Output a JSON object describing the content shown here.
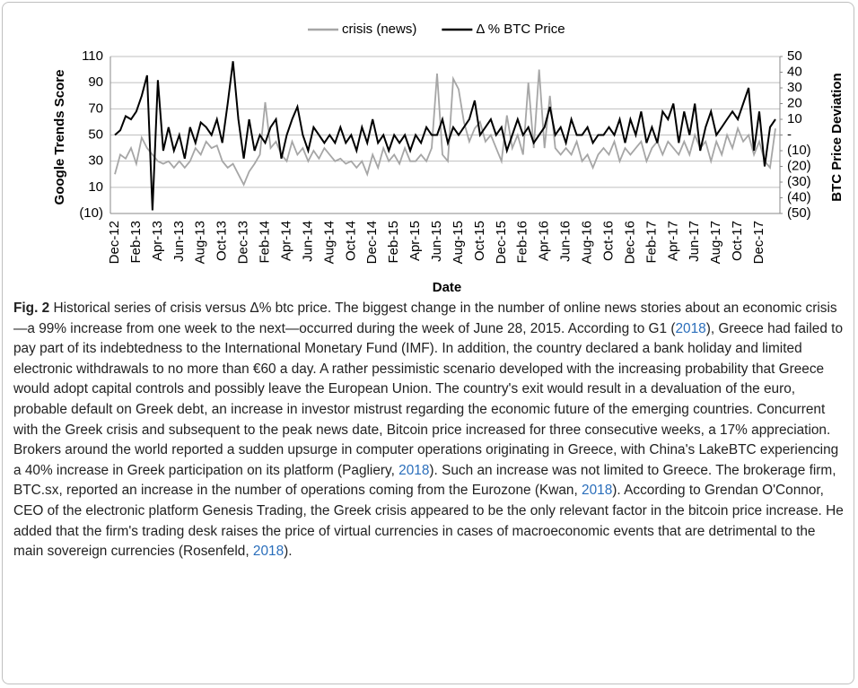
{
  "chart_data": {
    "type": "line",
    "x_label": "Date",
    "y_label": "Google Trends Score",
    "y2_label": "BTC Price Deviation",
    "categories": [
      "Dec-12",
      null,
      null,
      null,
      "Feb-13",
      null,
      null,
      null,
      "Apr-13",
      null,
      null,
      null,
      "Jun-13",
      null,
      null,
      null,
      "Aug-13",
      null,
      null,
      null,
      "Oct-13",
      null,
      null,
      null,
      "Dec-13",
      null,
      null,
      null,
      "Feb-14",
      null,
      null,
      null,
      "Apr-14",
      null,
      null,
      null,
      "Jun-14",
      null,
      null,
      null,
      "Aug-14",
      null,
      null,
      null,
      "Oct-14",
      null,
      null,
      null,
      "Dec-14",
      null,
      null,
      null,
      "Feb-15",
      null,
      null,
      null,
      "Apr-15",
      null,
      null,
      null,
      "Jun-15",
      null,
      null,
      null,
      "Aug-15",
      null,
      null,
      null,
      "Oct-15",
      null,
      null,
      null,
      "Dec-15",
      null,
      null,
      null,
      "Feb-16",
      null,
      null,
      null,
      "Apr-16",
      null,
      null,
      null,
      "Jun-16",
      null,
      null,
      null,
      "Aug-16",
      null,
      null,
      null,
      "Oct-16",
      null,
      null,
      null,
      "Dec-16",
      null,
      null,
      null,
      "Feb-17",
      null,
      null,
      null,
      "Apr-17",
      null,
      null,
      null,
      "Jun-17",
      null,
      null,
      null,
      "Aug-17",
      null,
      null,
      null,
      "Oct-17",
      null,
      null,
      null,
      "Dec-17",
      null,
      null,
      null
    ],
    "series": [
      {
        "name": "crisis (news)",
        "color": "#a6a6a6",
        "values": [
          20,
          35,
          32,
          40,
          28,
          48,
          40,
          35,
          30,
          28,
          30,
          25,
          30,
          25,
          30,
          40,
          35,
          45,
          40,
          42,
          30,
          25,
          28,
          20,
          12,
          22,
          28,
          35,
          75,
          40,
          45,
          35,
          30,
          45,
          35,
          40,
          30,
          38,
          32,
          40,
          35,
          30,
          32,
          28,
          30,
          25,
          30,
          20,
          35,
          25,
          40,
          30,
          35,
          28,
          40,
          30,
          30,
          35,
          30,
          40,
          97,
          35,
          30,
          93,
          85,
          60,
          45,
          55,
          60,
          45,
          50,
          40,
          30,
          65,
          40,
          50,
          35,
          90,
          40,
          100,
          40,
          80,
          40,
          35,
          40,
          35,
          45,
          30,
          35,
          25,
          35,
          40,
          35,
          45,
          30,
          40,
          35,
          40,
          45,
          30,
          40,
          45,
          35,
          45,
          40,
          35,
          45,
          35,
          50,
          40,
          45,
          30,
          45,
          35,
          50,
          40,
          55,
          45,
          50,
          35,
          45,
          30,
          25,
          55
        ]
      },
      {
        "name": "Δ % BTC Price",
        "color": "#000000",
        "axis": "y2",
        "values": [
          0,
          3,
          12,
          10,
          15,
          25,
          38,
          -48,
          35,
          -10,
          5,
          -10,
          0,
          -15,
          5,
          -5,
          8,
          5,
          0,
          10,
          -5,
          20,
          47,
          10,
          -15,
          10,
          -10,
          0,
          -5,
          5,
          10,
          -15,
          0,
          10,
          18,
          0,
          -10,
          5,
          0,
          -5,
          0,
          -5,
          5,
          -5,
          0,
          -10,
          5,
          -5,
          10,
          -5,
          0,
          -10,
          0,
          -5,
          0,
          -10,
          0,
          -5,
          5,
          0,
          0,
          10,
          -5,
          5,
          0,
          5,
          10,
          22,
          0,
          5,
          10,
          0,
          5,
          -10,
          0,
          10,
          0,
          5,
          -5,
          0,
          5,
          18,
          0,
          5,
          -5,
          10,
          0,
          0,
          5,
          -5,
          0,
          0,
          5,
          0,
          10,
          -5,
          10,
          0,
          15,
          -5,
          5,
          -5,
          15,
          10,
          20,
          -5,
          15,
          0,
          20,
          -10,
          5,
          15,
          0,
          5,
          10,
          15,
          10,
          20,
          30,
          -10,
          15,
          -20,
          5,
          10
        ]
      }
    ],
    "ylim": [
      -10,
      110
    ],
    "yticks": [
      {
        "value": -10,
        "label": "(10)"
      },
      10,
      30,
      50,
      70,
      90,
      110
    ],
    "y2lim": [
      -50,
      50
    ],
    "y2ticks": [
      {
        "value": -50,
        "label": "(50)"
      },
      {
        "value": -40,
        "label": "(40)"
      },
      {
        "value": -30,
        "label": "(30)"
      },
      {
        "value": -20,
        "label": "(20)"
      },
      {
        "value": -10,
        "label": "(10)"
      },
      {
        "value": 0,
        "label": "-"
      },
      10,
      20,
      30,
      40,
      50
    ],
    "grid": true,
    "legend": "top"
  },
  "caption": {
    "label": "Fig. 2",
    "parts": [
      {
        "text": " Historical series of crisis versus Δ% btc price. The biggest change in the number of online news stories about an economic crisis—a 99% increase from one week to the next—occurred during the week of June 28, 2015. According to G1 ("
      },
      {
        "text": "2018",
        "cite": true
      },
      {
        "text": "), Greece had failed to pay part of its indebtedness to the International Monetary Fund (IMF). In addition, the country declared a bank holiday and limited electronic withdrawals to no more than €60 a day. A rather pessimistic scenario developed with the increasing probability that Greece would adopt capital controls and possibly leave the European Union. The country's exit would result in a devaluation of the euro, probable default on Greek debt, an increase in investor mistrust regarding the economic future of the emerging countries. Concurrent with the Greek crisis and subsequent to the peak news date, Bitcoin price increased for three consecutive weeks, a 17% appreciation. Brokers around the world reported a sudden upsurge in computer operations originating in Greece, with China's LakeBTC experiencing a 40% increase in Greek participation on its platform (Pagliery, "
      },
      {
        "text": "2018",
        "cite": true
      },
      {
        "text": "). Such an increase was not limited to Greece. The brokerage firm, BTC.sx, reported an increase in the number of operations coming from the Eurozone (Kwan, "
      },
      {
        "text": "2018",
        "cite": true
      },
      {
        "text": "). According to Grendan O'Connor, CEO of the electronic platform Genesis Trading, the Greek crisis appeared to be the only relevant factor in the bitcoin price increase. He added that the firm's trading desk raises the price of virtual currencies in cases of macroeconomic events that are detrimental to the main sovereign currencies (Rosenfeld, "
      },
      {
        "text": "2018",
        "cite": true
      },
      {
        "text": ")."
      }
    ]
  }
}
